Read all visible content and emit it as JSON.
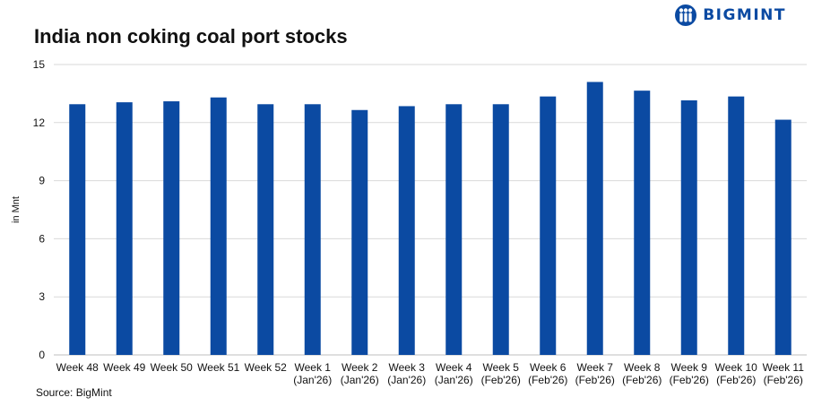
{
  "brand": {
    "name": "BIGMINT"
  },
  "colors": {
    "bar": "#0b4aa2",
    "grid": "#d9d9d9",
    "axis": "#bfbfbf"
  },
  "source": "Source: BigMint",
  "chart_data": {
    "type": "bar",
    "title": "India non coking coal port stocks",
    "ylabel": "in Mnt",
    "xlabel": "",
    "ylim": [
      0,
      15
    ],
    "yticks": [
      0,
      3,
      6,
      9,
      12,
      15
    ],
    "grid": true,
    "categories": [
      [
        "Week 48"
      ],
      [
        "Week 49"
      ],
      [
        "Week 50"
      ],
      [
        "Week 51"
      ],
      [
        "Week 52"
      ],
      [
        "Week 1",
        "(Jan'26)"
      ],
      [
        "Week 2",
        "(Jan'26)"
      ],
      [
        "Week 3",
        "(Jan'26)"
      ],
      [
        "Week 4",
        "(Jan'26)"
      ],
      [
        "Week 5",
        "(Feb'26)"
      ],
      [
        "Week 6",
        "(Feb'26)"
      ],
      [
        "Week 7",
        "(Feb'26)"
      ],
      [
        "Week 8",
        "(Feb'26)"
      ],
      [
        "Week 9",
        "(Feb'26)"
      ],
      [
        "Week 10",
        "(Feb'26)"
      ],
      [
        "Week 11",
        "(Feb'26)"
      ]
    ],
    "values": [
      12.95,
      13.05,
      13.1,
      13.3,
      12.95,
      12.95,
      12.65,
      12.85,
      12.95,
      12.95,
      13.35,
      14.1,
      13.65,
      13.15,
      13.35,
      12.15
    ]
  }
}
